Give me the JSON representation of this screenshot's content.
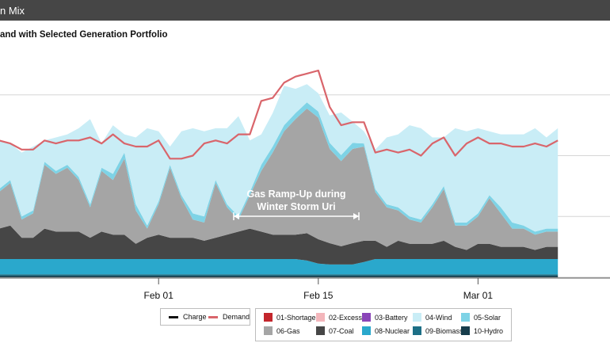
{
  "header": {
    "title": "n Mix"
  },
  "subtitle": "and with Selected Generation Portfolio",
  "chart_data": {
    "type": "area",
    "x": [
      "Jan 18",
      "Jan 19",
      "Jan 20",
      "Jan 21",
      "Jan 22",
      "Jan 23",
      "Jan 24",
      "Jan 25",
      "Jan 26",
      "Jan 27",
      "Jan 28",
      "Jan 29",
      "Jan 30",
      "Jan 31",
      "Feb 01",
      "Feb 02",
      "Feb 03",
      "Feb 04",
      "Feb 05",
      "Feb 06",
      "Feb 07",
      "Feb 08",
      "Feb 09",
      "Feb 10",
      "Feb 11",
      "Feb 12",
      "Feb 13",
      "Feb 14",
      "Feb 15",
      "Feb 16",
      "Feb 17",
      "Feb 18",
      "Feb 19",
      "Feb 20",
      "Feb 21",
      "Feb 22",
      "Feb 23",
      "Feb 24",
      "Feb 25",
      "Feb 26",
      "Feb 27",
      "Feb 28",
      "Mar 01",
      "Mar 02",
      "Mar 03",
      "Mar 04",
      "Mar 05",
      "Mar 06",
      "Mar 07",
      "Mar 08"
    ],
    "x_ticks": [
      {
        "label": "Feb 01",
        "index": 14
      },
      {
        "label": "Feb 15",
        "index": 28
      },
      {
        "label": "Mar 01",
        "index": 42
      }
    ],
    "ylim": [
      0,
      74
    ],
    "gridlines": [
      0,
      20,
      40,
      60
    ],
    "series": [
      {
        "name": "10-Hydro",
        "color": "#163c4b",
        "values": [
          0.5,
          0.5,
          0.5,
          0.5,
          0.5,
          0.5,
          0.5,
          0.5,
          0.5,
          0.5,
          0.5,
          0.5,
          0.5,
          0.5,
          0.5,
          0.5,
          0.5,
          0.5,
          0.5,
          0.5,
          0.5,
          0.5,
          0.5,
          0.5,
          0.5,
          0.5,
          0.5,
          0.5,
          0.5,
          0.5,
          0.5,
          0.5,
          0.5,
          0.5,
          0.5,
          0.5,
          0.5,
          0.5,
          0.5,
          0.5,
          0.5,
          0.5,
          0.5,
          0.5,
          0.5,
          0.5,
          0.5,
          0.5,
          0.5,
          0.5
        ]
      },
      {
        "name": "09-Biomass",
        "color": "#1d6f86",
        "values": [
          0.5,
          0.5,
          0.5,
          0.5,
          0.5,
          0.5,
          0.5,
          0.5,
          0.5,
          0.5,
          0.5,
          0.5,
          0.5,
          0.5,
          0.5,
          0.5,
          0.5,
          0.5,
          0.5,
          0.5,
          0.5,
          0.5,
          0.5,
          0.5,
          0.5,
          0.5,
          0.5,
          0.5,
          0.5,
          0.5,
          0.5,
          0.5,
          0.5,
          0.5,
          0.5,
          0.5,
          0.5,
          0.5,
          0.5,
          0.5,
          0.5,
          0.5,
          0.5,
          0.5,
          0.5,
          0.5,
          0.5,
          0.5,
          0.5,
          0.5
        ]
      },
      {
        "name": "08-Nuclear",
        "color": "#2aa8cc",
        "values": [
          5,
          5,
          5,
          5,
          5,
          5,
          5,
          5,
          5,
          5,
          5,
          5,
          5,
          5,
          5,
          5,
          5,
          5,
          5,
          5,
          5,
          5,
          5,
          5,
          5,
          5,
          5,
          4.5,
          3.5,
          3.2,
          3.2,
          3.2,
          4,
          5,
          5,
          5,
          5,
          5,
          5,
          5,
          5,
          5,
          5,
          5,
          5,
          5,
          5,
          5,
          5,
          5
        ]
      },
      {
        "name": "07-Coal",
        "color": "#464646",
        "values": [
          10,
          11,
          7,
          7,
          10,
          9,
          9,
          9,
          7,
          9,
          8,
          8,
          5,
          7,
          8,
          7,
          7,
          7,
          6,
          7,
          8,
          9,
          10,
          9,
          8,
          8,
          8,
          9,
          8,
          7,
          6,
          7,
          7,
          6,
          4,
          6,
          5,
          5,
          5,
          6,
          4,
          3,
          5,
          5,
          4,
          4,
          4,
          3,
          4,
          4
        ]
      },
      {
        "name": "06-Gas",
        "color": "#a5a5a5",
        "values": [
          12,
          14,
          6,
          8,
          21,
          19,
          21,
          17,
          10,
          20,
          18,
          25,
          11,
          3,
          10,
          23,
          13,
          6,
          6,
          18,
          9,
          4,
          11,
          20,
          27,
          34,
          38,
          41,
          40,
          31,
          28,
          31,
          31,
          16,
          13,
          10,
          8,
          7,
          12,
          17,
          7,
          8,
          9,
          15,
          11,
          6,
          6,
          5,
          5,
          5
        ]
      },
      {
        "name": "05-Solar",
        "color": "#7ed3e6",
        "values": [
          1,
          1,
          1,
          1,
          1,
          1,
          1,
          1,
          1,
          1,
          2,
          2,
          2,
          1,
          1,
          1,
          1,
          2,
          2,
          1,
          1,
          1,
          1,
          2,
          2,
          2,
          2,
          2,
          2,
          2,
          2,
          2,
          1,
          1,
          1,
          1,
          1,
          1,
          1,
          1,
          1,
          1,
          1,
          1,
          2,
          2,
          1,
          1,
          1,
          1
        ]
      },
      {
        "name": "04-Wind",
        "color": "#c9edf6",
        "values": [
          16,
          12,
          21,
          21,
          7,
          11,
          10,
          16,
          28,
          8,
          16,
          6,
          22,
          32,
          23,
          6,
          21,
          28,
          28,
          17,
          25,
          33,
          17,
          10,
          11,
          13,
          8,
          6,
          6,
          9,
          14,
          7,
          4,
          13,
          22,
          24,
          30,
          30,
          22,
          16,
          31,
          30,
          28,
          21,
          24,
          29,
          30,
          34,
          30,
          33
        ]
      },
      {
        "name": "02-Excess",
        "color": "#f3b6bb",
        "values": [
          0,
          0,
          0,
          0,
          0,
          0,
          0,
          0,
          0,
          0,
          0,
          0,
          0,
          0,
          0,
          0,
          0,
          0,
          0,
          0,
          0,
          0,
          0,
          0,
          0,
          0,
          0,
          0,
          0,
          0,
          0,
          0,
          0,
          0,
          0,
          0,
          0,
          0,
          0,
          0,
          0,
          0,
          0,
          0,
          0,
          0,
          0,
          0,
          0,
          0
        ]
      }
    ],
    "demand": {
      "name": "Demand",
      "color": "#d9656b",
      "values": [
        45,
        44,
        42,
        42,
        45,
        44,
        45,
        45,
        46,
        44,
        47,
        44,
        43,
        43,
        45,
        39,
        39,
        40,
        44,
        45,
        44,
        47,
        47,
        58,
        59,
        64,
        66,
        67,
        68,
        56,
        50,
        51,
        51,
        41,
        42,
        41,
        42,
        40,
        44,
        46,
        40,
        44,
        46,
        44,
        44,
        43,
        43,
        44,
        43,
        45
      ]
    },
    "charge": {
      "name": "Charge",
      "color": "#111111",
      "values": []
    },
    "annotation": {
      "text_line1": "Gas Ramp-Up during",
      "text_line2": "Winter Storm Uri",
      "from": "Feb 08",
      "to": "Feb 18"
    },
    "legend": {
      "lines": [
        {
          "name": "Charge",
          "color": "#111111"
        },
        {
          "name": "Demand",
          "color": "#d9656b"
        }
      ],
      "boxes": [
        {
          "name": "01-Shortage",
          "color": "#c3262c"
        },
        {
          "name": "02-Excess",
          "color": "#f3b6bb"
        },
        {
          "name": "03-Battery",
          "color": "#8a45b8"
        },
        {
          "name": "04-Wind",
          "color": "#c9edf6"
        },
        {
          "name": "05-Solar",
          "color": "#7ed3e6"
        },
        {
          "name": "06-Gas",
          "color": "#a5a5a5"
        },
        {
          "name": "07-Coal",
          "color": "#464646"
        },
        {
          "name": "08-Nuclear",
          "color": "#2aa8cc"
        },
        {
          "name": "09-Biomass",
          "color": "#1d6f86"
        },
        {
          "name": "10-Hydro",
          "color": "#163c4b"
        }
      ],
      "placement": "bottom"
    }
  }
}
